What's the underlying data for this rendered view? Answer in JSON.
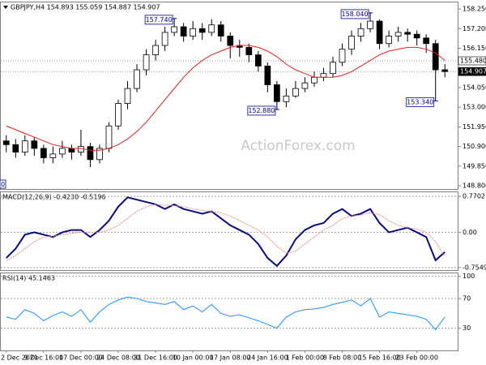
{
  "chart_data": [
    {
      "type": "candlestick",
      "title": "GBPJPY,H4 154.893 155.059 154.887 154.907",
      "watermark": "ActionForex.com",
      "categories": [
        "2 Dec 2021",
        null,
        null,
        null,
        "9 Dec 16:00",
        null,
        null,
        null,
        "17 Dec 00:00",
        null,
        null,
        null,
        "24 Dec 08:00",
        null,
        null,
        null,
        "31 Dec 16:00",
        null,
        null,
        null,
        "10 Jan 00:00",
        null,
        null,
        null,
        "17 Jan 08:00",
        null,
        null,
        null,
        "24 Jan 16:00",
        null,
        null,
        null,
        "1 Feb 00:00",
        null,
        null,
        null,
        "8 Feb 08:00",
        null,
        null,
        null,
        "15 Feb 16:00",
        null,
        null,
        null,
        "23 Feb 00:00",
        null,
        null,
        null
      ],
      "open": [
        151.2,
        151.0,
        150.6,
        151.2,
        150.8,
        150.3,
        150.5,
        150.8,
        150.6,
        150.9,
        150.2,
        150.8,
        152.0,
        153.2,
        154.0,
        155.0,
        155.8,
        156.3,
        157.0,
        157.3,
        156.8,
        157.2,
        157.0,
        157.4,
        156.8,
        156.3,
        156.2,
        155.8,
        155.2,
        154.2,
        153.3,
        153.6,
        154.0,
        154.3,
        154.6,
        154.8,
        155.4,
        156.1,
        156.8,
        157.2,
        157.6,
        156.4,
        156.8,
        157.0,
        156.9,
        156.7,
        156.4,
        155.0
      ],
      "high": [
        151.5,
        151.3,
        151.5,
        151.4,
        151.0,
        150.9,
        151.2,
        151.0,
        151.8,
        151.1,
        151.0,
        152.2,
        153.4,
        154.4,
        155.3,
        156.1,
        156.6,
        157.3,
        157.74,
        157.5,
        157.6,
        157.5,
        157.7,
        157.6,
        157.0,
        156.6,
        156.4,
        156.0,
        155.4,
        154.4,
        154.0,
        154.4,
        154.6,
        154.9,
        155.1,
        155.7,
        156.4,
        157.1,
        157.5,
        158.04,
        157.7,
        157.1,
        157.3,
        157.2,
        157.1,
        156.9,
        156.6,
        155.3
      ],
      "low": [
        150.6,
        150.3,
        150.4,
        150.4,
        150.0,
        150.0,
        150.3,
        150.2,
        150.4,
        149.8,
        150.0,
        150.6,
        151.8,
        152.9,
        153.8,
        154.7,
        155.5,
        156.0,
        156.8,
        156.5,
        156.6,
        156.6,
        156.8,
        156.5,
        155.6,
        155.7,
        155.4,
        154.9,
        153.8,
        152.88,
        153.0,
        153.5,
        153.8,
        154.1,
        154.4,
        154.6,
        155.2,
        155.8,
        156.5,
        157.0,
        156.1,
        156.2,
        156.5,
        156.5,
        156.3,
        155.9,
        153.34,
        154.6
      ],
      "close": [
        151.0,
        150.6,
        151.2,
        150.8,
        150.3,
        150.5,
        150.8,
        150.6,
        150.9,
        150.2,
        150.8,
        152.0,
        153.2,
        154.0,
        155.0,
        155.8,
        156.3,
        157.0,
        157.3,
        156.8,
        157.2,
        157.0,
        157.4,
        156.8,
        156.3,
        156.2,
        155.8,
        155.2,
        154.2,
        153.3,
        153.6,
        154.0,
        154.3,
        154.6,
        154.8,
        155.4,
        156.1,
        156.8,
        157.2,
        157.6,
        156.4,
        156.8,
        157.0,
        156.9,
        156.7,
        156.4,
        155.0,
        154.907
      ],
      "ma": {
        "color": "#e02020",
        "values": [
          152.0,
          151.8,
          151.6,
          151.4,
          151.2,
          151.0,
          150.9,
          150.8,
          150.8,
          150.7,
          150.7,
          150.8,
          151.0,
          151.3,
          151.7,
          152.2,
          152.8,
          153.4,
          154.0,
          154.6,
          155.1,
          155.5,
          155.8,
          156.0,
          156.2,
          156.3,
          156.3,
          156.2,
          156.0,
          155.7,
          155.3,
          155.0,
          154.8,
          154.6,
          154.6,
          154.6,
          154.7,
          154.9,
          155.2,
          155.5,
          155.8,
          156.0,
          156.1,
          156.2,
          156.2,
          156.1,
          155.9,
          155.5
        ]
      },
      "ylim": [
        148.63,
        158.6
      ],
      "yticks": [
        {
          "value": 158.25,
          "label": "158.250"
        },
        {
          "value": 157.2,
          "label": "157.200"
        },
        {
          "value": 156.15,
          "label": "156.150"
        },
        {
          "value": 154.05,
          "label": "154.050"
        },
        {
          "value": 153.0,
          "label": "153.000"
        },
        {
          "value": 151.95,
          "label": "151.950"
        },
        {
          "value": 150.9,
          "label": "150.900"
        },
        {
          "value": 149.85,
          "label": "149.850"
        },
        {
          "value": 148.8,
          "label": "148.800"
        }
      ],
      "price_labels": [
        {
          "value": 155.48,
          "label": "155.480"
        },
        {
          "value": 154.907,
          "label": "154.907"
        }
      ],
      "annotations": [
        {
          "value": 157.74,
          "label": "157.740"
        },
        {
          "value": 158.04,
          "label": "158.040"
        },
        {
          "value": 152.88,
          "label": "152.880"
        },
        {
          "value": 153.34,
          "label": "153.340"
        }
      ],
      "edge_label": "0",
      "grid": false
    },
    {
      "type": "line",
      "title": "MACD(12,26,9) -0.4230 -0.5196",
      "series": [
        {
          "color": "#0a0a80",
          "values": [
            -0.55,
            -0.35,
            -0.05,
            0.0,
            -0.05,
            -0.1,
            0.0,
            0.05,
            0.05,
            -0.1,
            0.05,
            0.25,
            0.55,
            0.75,
            0.7,
            0.65,
            0.6,
            0.5,
            0.6,
            0.5,
            0.45,
            0.4,
            0.45,
            0.3,
            0.15,
            0.05,
            -0.05,
            -0.25,
            -0.55,
            -0.72,
            -0.5,
            -0.15,
            0.05,
            0.15,
            0.2,
            0.4,
            0.5,
            0.35,
            0.4,
            0.5,
            0.2,
            0.0,
            0.05,
            0.1,
            0.0,
            -0.1,
            -0.6,
            -0.423
          ]
        },
        {
          "color": "#e89090",
          "values": [
            -0.6,
            -0.5,
            -0.35,
            -0.2,
            -0.1,
            -0.08,
            -0.05,
            -0.02,
            0.0,
            0.0,
            0.0,
            0.05,
            0.15,
            0.3,
            0.45,
            0.55,
            0.6,
            0.58,
            0.57,
            0.55,
            0.5,
            0.47,
            0.45,
            0.42,
            0.35,
            0.25,
            0.15,
            0.05,
            -0.1,
            -0.3,
            -0.45,
            -0.4,
            -0.25,
            -0.1,
            0.05,
            0.15,
            0.3,
            0.35,
            0.37,
            0.42,
            0.38,
            0.25,
            0.15,
            0.1,
            0.07,
            0.0,
            -0.2,
            -0.5196
          ]
        }
      ],
      "ylim": [
        -0.81,
        0.86
      ],
      "yticks": [
        0.7702,
        {
          "value": 0,
          "label": "0.00"
        },
        -0.7549
      ],
      "grid": true
    },
    {
      "type": "line",
      "title": "RSI(14) 45.1463",
      "series": [
        {
          "color": "#1e90ff",
          "values": [
            45,
            42,
            55,
            50,
            40,
            47,
            52,
            46,
            55,
            38,
            52,
            62,
            68,
            72,
            70,
            66,
            64,
            62,
            66,
            55,
            60,
            52,
            62,
            50,
            46,
            48,
            44,
            40,
            35,
            30,
            45,
            52,
            55,
            56,
            58,
            62,
            65,
            68,
            60,
            70,
            45,
            52,
            50,
            48,
            46,
            42,
            28,
            45.1463
          ]
        }
      ],
      "ylim": [
        0,
        104
      ],
      "yticks": [
        100,
        70,
        30
      ],
      "grid": true
    }
  ]
}
